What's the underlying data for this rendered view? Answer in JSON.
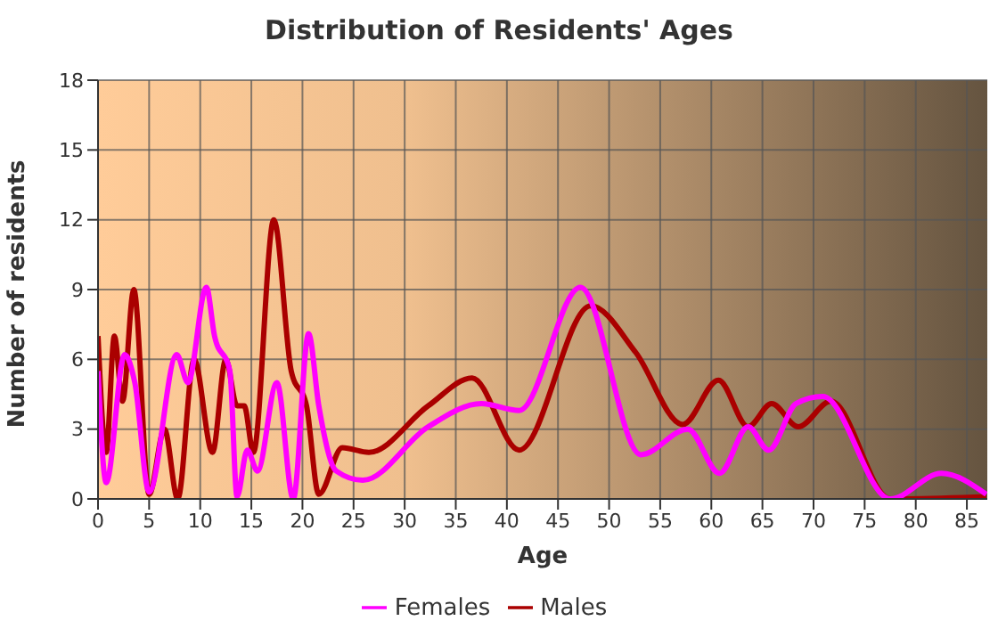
{
  "chart_data": {
    "type": "line",
    "title": "Distribution of Residents' Ages",
    "xlabel": "Age",
    "ylabel": "Number of residents",
    "xlim": [
      0,
      87
    ],
    "xticks": [
      0,
      5,
      10,
      15,
      20,
      25,
      30,
      35,
      40,
      45,
      50,
      55,
      60,
      65,
      70,
      75,
      80,
      85
    ],
    "ylim": [
      0,
      18
    ],
    "yticks": [
      0,
      3,
      6,
      9,
      12,
      15,
      18
    ],
    "grid": true,
    "legend": "bottom",
    "marker": "none",
    "series": [
      {
        "name": "Males",
        "color": "#aa0000",
        "x": [
          0,
          0.8,
          1.6,
          2.4,
          3.5,
          5.0,
          6.5,
          7.8,
          9.4,
          11.2,
          12.5,
          13.6,
          14.3,
          15.2,
          17.2,
          18.9,
          20.4,
          21.6,
          23.9,
          26.5,
          32.3,
          36.6,
          41.2,
          48.2,
          52.6,
          57.2,
          60.7,
          63.6,
          65.9,
          68.5,
          71.7,
          77.5,
          86.9
        ],
        "values": [
          7,
          2,
          7,
          4.2,
          9,
          0.2,
          3,
          0,
          6,
          2,
          6,
          4,
          4,
          2,
          12,
          5.5,
          4,
          0.2,
          2.2,
          2,
          4,
          5.2,
          2.1,
          8.3,
          6.3,
          3.2,
          5.1,
          3.1,
          4.1,
          3.1,
          4.2,
          0,
          0.1
        ]
      },
      {
        "name": "Females",
        "color": "#ff00ff",
        "x": [
          0,
          0.8,
          2.6,
          3.6,
          5.0,
          7.7,
          8.8,
          10.6,
          11.4,
          12.9,
          13.6,
          14.6,
          15.6,
          17.5,
          19.1,
          20.6,
          21.6,
          23.3,
          25.9,
          32.3,
          37.5,
          41.2,
          47.2,
          53.1,
          57.7,
          60.8,
          63.6,
          65.6,
          68.3,
          70.9,
          77.5,
          82.5,
          86.9
        ],
        "values": [
          5.5,
          0.7,
          6.2,
          5,
          0.3,
          6.2,
          5,
          9.1,
          7,
          5.5,
          0.1,
          2.1,
          1.2,
          5,
          0,
          7.1,
          4,
          1.2,
          0.8,
          3.1,
          4.1,
          3.8,
          9.1,
          1.9,
          3,
          1.1,
          3.1,
          2.1,
          4.1,
          4.4,
          0,
          1.1,
          0.2
        ]
      }
    ]
  }
}
